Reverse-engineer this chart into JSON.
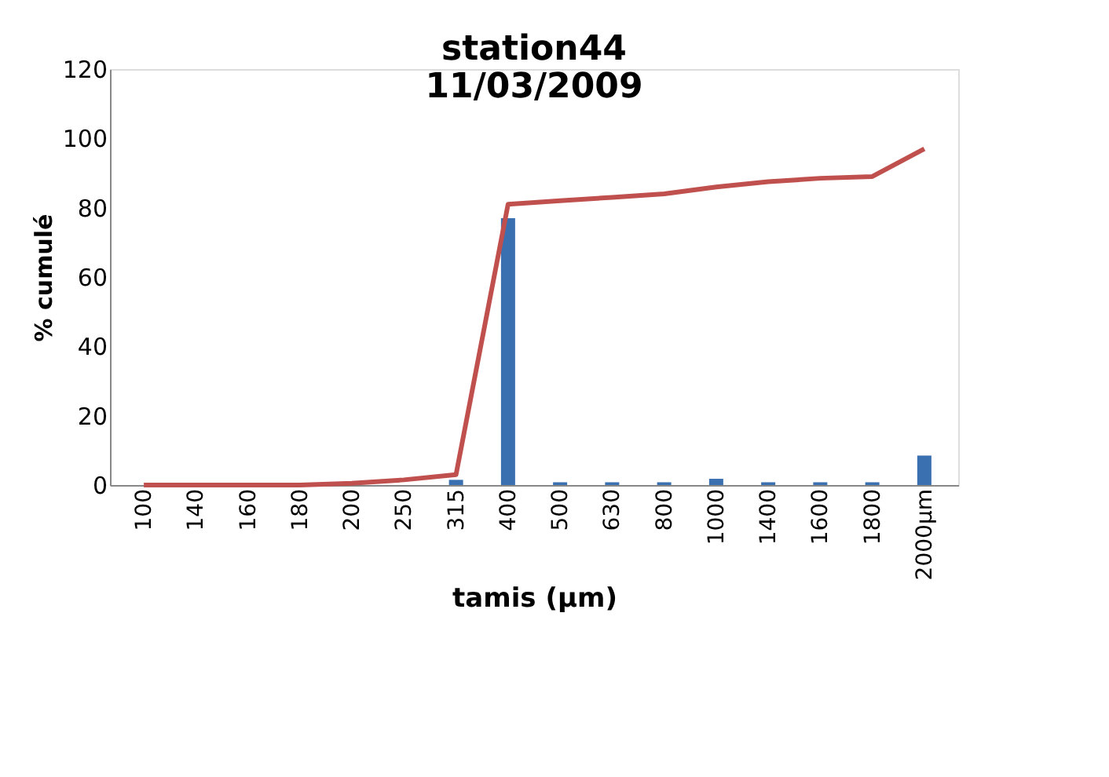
{
  "chart_data": {
    "type": "bar",
    "title": "station44 11/03/2009",
    "xlabel": "tamis (µm)",
    "ylabel": "% cumulé",
    "categories": [
      "100",
      "140",
      "160",
      "180",
      "200",
      "250",
      "315",
      "400",
      "500",
      "630",
      "800",
      "1000",
      "1400",
      "1600",
      "1800",
      "2000µm"
    ],
    "series": [
      {
        "color": "#3a6fb0",
        "values": [
          0,
          0,
          0,
          0,
          0,
          0,
          1.5,
          77,
          0.8,
          0.8,
          0.8,
          1.8,
          0.8,
          0.8,
          0.8,
          8.5
        ]
      },
      {
        "type": "line",
        "color": "#c0504d",
        "values": [
          0,
          0,
          0,
          0,
          0.5,
          1.5,
          3,
          81,
          82,
          83,
          84,
          86,
          87.5,
          88.5,
          89,
          97
        ]
      }
    ],
    "ylim": [
      0,
      120
    ],
    "yticks": [
      0,
      20,
      40,
      60,
      80,
      100,
      120
    ],
    "grid": false
  }
}
